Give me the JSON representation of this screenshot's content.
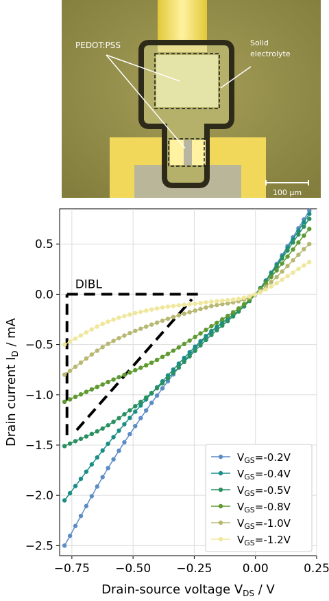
{
  "micrograph": {
    "label_pedot": "PEDOT:PSS",
    "label_electrolyte_1": "Solid",
    "label_electrolyte_2": "electrolyte",
    "scale_bar": "100 µm",
    "colors": {
      "background": "#8e8848",
      "gold": "#e8d84a",
      "gold_bright": "#fff4a0",
      "substrate": "#b9b69a",
      "channel": "#dcdca8",
      "border": "#2e2a1a"
    }
  },
  "chart_data": {
    "type": "line",
    "xlabel_main": "Drain-source voltage V",
    "xlabel_sub": "DS",
    "xlabel_unit": " / V",
    "ylabel_main": "Drain current I",
    "ylabel_sub": "D",
    "ylabel_unit": " / mA",
    "xlim": [
      -0.8,
      0.25
    ],
    "ylim": [
      -2.6,
      0.85
    ],
    "xticks": [
      -0.75,
      -0.5,
      -0.25,
      0.0,
      0.25
    ],
    "xtick_labels": [
      "−0.75",
      "−0.50",
      "−0.25",
      "0.00",
      "0.25"
    ],
    "yticks": [
      -2.5,
      -2.0,
      -1.5,
      -1.0,
      -0.5,
      0.0,
      0.5
    ],
    "ytick_labels": [
      "−2.5",
      "−2.0",
      "−1.5",
      "−1.0",
      "−0.5",
      "0.0",
      "0.5"
    ],
    "grid": true,
    "legend_position": "bottom-right",
    "annotation": {
      "text": "DIBL",
      "lines": [
        {
          "x": [
            -0.77,
            -0.77
          ],
          "y": [
            -1.4,
            0.0
          ]
        },
        {
          "x": [
            -0.77,
            -0.22
          ],
          "y": [
            0.0,
            0.0
          ]
        },
        {
          "x": [
            -0.73,
            -0.26
          ],
          "y": [
            -1.35,
            -0.05
          ]
        }
      ]
    },
    "x_start": -0.78,
    "x_end": 0.22,
    "n_points": 46,
    "series": [
      {
        "name_main": "V",
        "name_sub": "GS",
        "name_value": "=-0.2V",
        "color": "#5b8cc4",
        "points": [
          [
            -0.78,
            -2.5
          ],
          [
            -0.6,
            -1.72
          ],
          [
            -0.4,
            -1.0
          ],
          [
            -0.2,
            -0.42
          ],
          [
            0.0,
            0.0
          ],
          [
            0.22,
            0.83
          ]
        ]
      },
      {
        "name_main": "V",
        "name_sub": "GS",
        "name_value": "=-0.4V",
        "color": "#1a8e86",
        "points": [
          [
            -0.78,
            -2.05
          ],
          [
            -0.6,
            -1.48
          ],
          [
            -0.4,
            -0.92
          ],
          [
            -0.2,
            -0.41
          ],
          [
            0.0,
            0.0
          ],
          [
            0.22,
            0.8
          ]
        ]
      },
      {
        "name_main": "V",
        "name_sub": "GS",
        "name_value": "=-0.5V",
        "color": "#2a9060",
        "points": [
          [
            -0.78,
            -1.51
          ],
          [
            -0.6,
            -1.3
          ],
          [
            -0.4,
            -0.93
          ],
          [
            -0.2,
            -0.45
          ],
          [
            0.0,
            0.0
          ],
          [
            0.22,
            0.75
          ]
        ]
      },
      {
        "name_main": "V",
        "name_sub": "GS",
        "name_value": "=-0.8V",
        "color": "#5e9a30",
        "points": [
          [
            -0.78,
            -1.07
          ],
          [
            -0.6,
            -0.87
          ],
          [
            -0.4,
            -0.65
          ],
          [
            -0.2,
            -0.35
          ],
          [
            0.0,
            0.0
          ],
          [
            0.22,
            0.65
          ]
        ]
      },
      {
        "name_main": "V",
        "name_sub": "GS",
        "name_value": "=-1.0V",
        "color": "#b7b872",
        "points": [
          [
            -0.78,
            -0.8
          ],
          [
            -0.6,
            -0.49
          ],
          [
            -0.4,
            -0.28
          ],
          [
            -0.2,
            -0.13
          ],
          [
            0.0,
            0.0
          ],
          [
            0.22,
            0.5
          ]
        ]
      },
      {
        "name_main": "V",
        "name_sub": "GS",
        "name_value": "=-1.2V",
        "color": "#efe89c",
        "points": [
          [
            -0.78,
            -0.5
          ],
          [
            -0.6,
            -0.27
          ],
          [
            -0.4,
            -0.14
          ],
          [
            -0.2,
            -0.08
          ],
          [
            0.0,
            0.0
          ],
          [
            0.22,
            0.32
          ]
        ]
      }
    ]
  }
}
